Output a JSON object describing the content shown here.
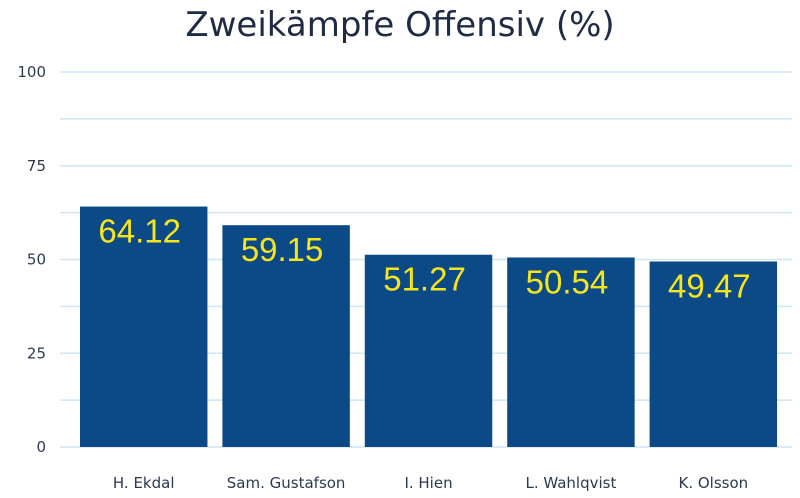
{
  "colors": {
    "bar": "#0b4a87",
    "grid": "#cfe6f3",
    "data_label": "#f5e51b"
  },
  "chart_data": {
    "type": "bar",
    "title": "Zweikämpfe Offensiv (%)",
    "xlabel": "",
    "ylabel": "",
    "ylim": [
      0,
      100
    ],
    "yticks": [
      0,
      25,
      50,
      75,
      100
    ],
    "ytick_labels": [
      "0",
      "25",
      "50",
      "75",
      "100"
    ],
    "grid": true,
    "categories": [
      "H. Ekdal",
      "Sam. Gustafson",
      "I. Hien",
      "L. Wahlqvist",
      "K. Olsson"
    ],
    "values": [
      64.12,
      59.15,
      51.27,
      50.54,
      49.47
    ],
    "data_labels": [
      "64.12",
      "59.15",
      "51.27",
      "50.54",
      "49.47"
    ]
  }
}
